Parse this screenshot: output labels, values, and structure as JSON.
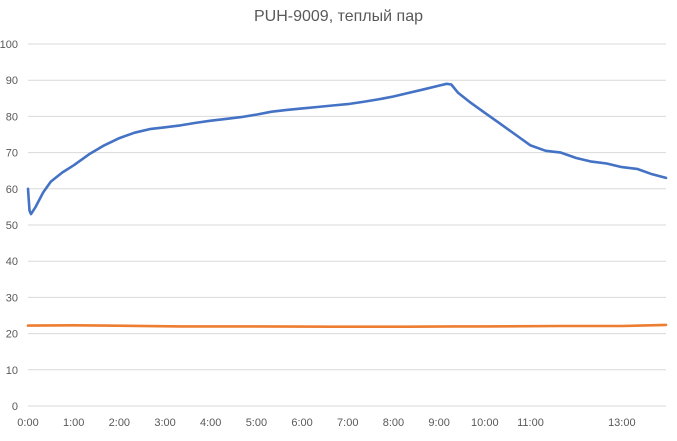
{
  "chart_data": {
    "type": "line",
    "title": "PUH-9009, теплый пар",
    "xlabel": "",
    "ylabel": "",
    "ylim": [
      0,
      100
    ],
    "xlim_minutes": [
      0,
      838
    ],
    "y_ticks": [
      0,
      10,
      20,
      30,
      40,
      50,
      60,
      70,
      80,
      90,
      100
    ],
    "x_tick_labels": [
      "0:00",
      "1:00",
      "2:00",
      "3:00",
      "4:00",
      "5:00",
      "6:00",
      "7:00",
      "8:00",
      "9:00",
      "10:00",
      "11:00",
      "13:00"
    ],
    "x_tick_minutes": [
      0,
      60,
      120,
      180,
      240,
      300,
      360,
      420,
      480,
      540,
      600,
      660,
      780
    ],
    "grid": "horizontal",
    "legend": "none",
    "series": [
      {
        "color": "#4472c4",
        "x": [
          0,
          2,
          4,
          10,
          20,
          30,
          45,
          60,
          80,
          100,
          120,
          140,
          160,
          180,
          200,
          220,
          240,
          260,
          280,
          300,
          320,
          340,
          360,
          380,
          400,
          420,
          440,
          460,
          480,
          500,
          520,
          540,
          550,
          556,
          565,
          580,
          600,
          620,
          640,
          660,
          680,
          700,
          720,
          740,
          760,
          780,
          800,
          820,
          838
        ],
        "y": [
          60,
          54,
          53,
          55,
          59,
          62,
          64.5,
          66.5,
          69.5,
          72,
          74,
          75.5,
          76.5,
          77,
          77.5,
          78.2,
          78.8,
          79.3,
          79.8,
          80.5,
          81.3,
          81.8,
          82.2,
          82.6,
          83,
          83.4,
          84,
          84.7,
          85.5,
          86.5,
          87.5,
          88.5,
          89,
          88.8,
          86.5,
          84,
          81,
          78,
          75,
          72,
          70.5,
          70,
          68.5,
          67.5,
          67,
          66,
          65.5,
          64,
          63
        ]
      },
      {
        "color": "#ed7d31",
        "x": [
          0,
          60,
          100,
          200,
          300,
          400,
          500,
          560,
          600,
          700,
          780,
          838
        ],
        "y": [
          22.2,
          22.3,
          22.2,
          22,
          22,
          21.9,
          21.9,
          22,
          22,
          22.1,
          22.1,
          22.4
        ]
      }
    ]
  }
}
